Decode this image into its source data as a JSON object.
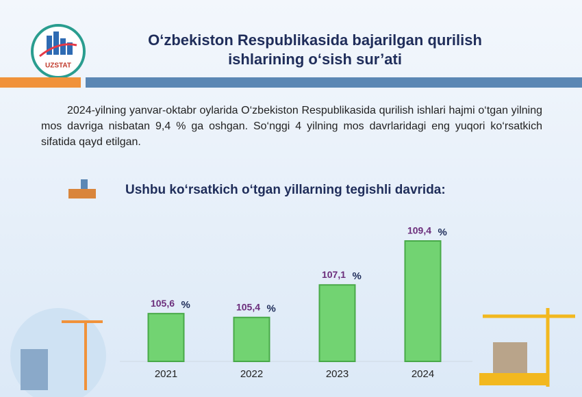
{
  "header": {
    "title": [
      "O‘zbekiston Respublikasida bajarilgan qurilish",
      "ishlarining o‘sish sur’ati"
    ],
    "logo_text": "UZSTAT"
  },
  "paragraph": "2024-yilning yanvar-oktabr oylarida O‘zbekiston Respublikasida qurilish ishlari hajmi o‘tgan yilning mos davriga nisbatan 9,4 % ga oshgan. So‘nggi 4 yilning mos davrlaridagi eng yuqori ko‘rsatkich sifatida qayd etilgan.",
  "chart_data": {
    "type": "bar",
    "title": "Ushbu ko‘rsatkich o‘tgan yillarning tegishli davrida:",
    "categories": [
      "2021",
      "2022",
      "2023",
      "2024"
    ],
    "values": [
      105.6,
      105.4,
      107.1,
      109.4
    ],
    "value_labels": [
      "105,6",
      "105,4",
      "107,1",
      "109,4"
    ],
    "unit": "%",
    "color": "#72d372",
    "ylim": [
      103.1,
      109.4
    ]
  }
}
